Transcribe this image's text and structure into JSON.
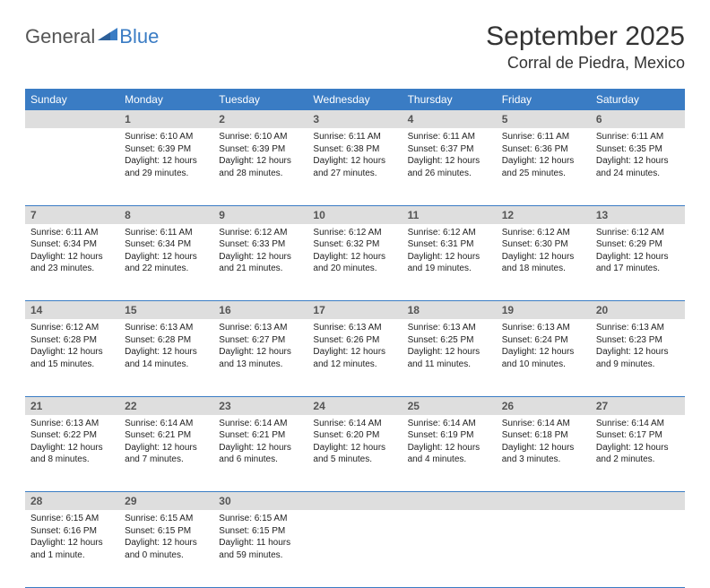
{
  "logo": {
    "general": "General",
    "blue": "Blue"
  },
  "title": "September 2025",
  "location": "Corral de Piedra, Mexico",
  "colors": {
    "header_bg": "#3a7cc4",
    "header_text": "#ffffff",
    "daynum_bg": "#dedede",
    "border": "#3a7cc4",
    "logo_blue": "#3a7cc4",
    "logo_gray": "#555555"
  },
  "day_headers": [
    "Sunday",
    "Monday",
    "Tuesday",
    "Wednesday",
    "Thursday",
    "Friday",
    "Saturday"
  ],
  "weeks": [
    {
      "nums": [
        "",
        "1",
        "2",
        "3",
        "4",
        "5",
        "6"
      ],
      "cells": [
        null,
        {
          "sunrise": "Sunrise: 6:10 AM",
          "sunset": "Sunset: 6:39 PM",
          "daylight": "Daylight: 12 hours and 29 minutes."
        },
        {
          "sunrise": "Sunrise: 6:10 AM",
          "sunset": "Sunset: 6:39 PM",
          "daylight": "Daylight: 12 hours and 28 minutes."
        },
        {
          "sunrise": "Sunrise: 6:11 AM",
          "sunset": "Sunset: 6:38 PM",
          "daylight": "Daylight: 12 hours and 27 minutes."
        },
        {
          "sunrise": "Sunrise: 6:11 AM",
          "sunset": "Sunset: 6:37 PM",
          "daylight": "Daylight: 12 hours and 26 minutes."
        },
        {
          "sunrise": "Sunrise: 6:11 AM",
          "sunset": "Sunset: 6:36 PM",
          "daylight": "Daylight: 12 hours and 25 minutes."
        },
        {
          "sunrise": "Sunrise: 6:11 AM",
          "sunset": "Sunset: 6:35 PM",
          "daylight": "Daylight: 12 hours and 24 minutes."
        }
      ]
    },
    {
      "nums": [
        "7",
        "8",
        "9",
        "10",
        "11",
        "12",
        "13"
      ],
      "cells": [
        {
          "sunrise": "Sunrise: 6:11 AM",
          "sunset": "Sunset: 6:34 PM",
          "daylight": "Daylight: 12 hours and 23 minutes."
        },
        {
          "sunrise": "Sunrise: 6:11 AM",
          "sunset": "Sunset: 6:34 PM",
          "daylight": "Daylight: 12 hours and 22 minutes."
        },
        {
          "sunrise": "Sunrise: 6:12 AM",
          "sunset": "Sunset: 6:33 PM",
          "daylight": "Daylight: 12 hours and 21 minutes."
        },
        {
          "sunrise": "Sunrise: 6:12 AM",
          "sunset": "Sunset: 6:32 PM",
          "daylight": "Daylight: 12 hours and 20 minutes."
        },
        {
          "sunrise": "Sunrise: 6:12 AM",
          "sunset": "Sunset: 6:31 PM",
          "daylight": "Daylight: 12 hours and 19 minutes."
        },
        {
          "sunrise": "Sunrise: 6:12 AM",
          "sunset": "Sunset: 6:30 PM",
          "daylight": "Daylight: 12 hours and 18 minutes."
        },
        {
          "sunrise": "Sunrise: 6:12 AM",
          "sunset": "Sunset: 6:29 PM",
          "daylight": "Daylight: 12 hours and 17 minutes."
        }
      ]
    },
    {
      "nums": [
        "14",
        "15",
        "16",
        "17",
        "18",
        "19",
        "20"
      ],
      "cells": [
        {
          "sunrise": "Sunrise: 6:12 AM",
          "sunset": "Sunset: 6:28 PM",
          "daylight": "Daylight: 12 hours and 15 minutes."
        },
        {
          "sunrise": "Sunrise: 6:13 AM",
          "sunset": "Sunset: 6:28 PM",
          "daylight": "Daylight: 12 hours and 14 minutes."
        },
        {
          "sunrise": "Sunrise: 6:13 AM",
          "sunset": "Sunset: 6:27 PM",
          "daylight": "Daylight: 12 hours and 13 minutes."
        },
        {
          "sunrise": "Sunrise: 6:13 AM",
          "sunset": "Sunset: 6:26 PM",
          "daylight": "Daylight: 12 hours and 12 minutes."
        },
        {
          "sunrise": "Sunrise: 6:13 AM",
          "sunset": "Sunset: 6:25 PM",
          "daylight": "Daylight: 12 hours and 11 minutes."
        },
        {
          "sunrise": "Sunrise: 6:13 AM",
          "sunset": "Sunset: 6:24 PM",
          "daylight": "Daylight: 12 hours and 10 minutes."
        },
        {
          "sunrise": "Sunrise: 6:13 AM",
          "sunset": "Sunset: 6:23 PM",
          "daylight": "Daylight: 12 hours and 9 minutes."
        }
      ]
    },
    {
      "nums": [
        "21",
        "22",
        "23",
        "24",
        "25",
        "26",
        "27"
      ],
      "cells": [
        {
          "sunrise": "Sunrise: 6:13 AM",
          "sunset": "Sunset: 6:22 PM",
          "daylight": "Daylight: 12 hours and 8 minutes."
        },
        {
          "sunrise": "Sunrise: 6:14 AM",
          "sunset": "Sunset: 6:21 PM",
          "daylight": "Daylight: 12 hours and 7 minutes."
        },
        {
          "sunrise": "Sunrise: 6:14 AM",
          "sunset": "Sunset: 6:21 PM",
          "daylight": "Daylight: 12 hours and 6 minutes."
        },
        {
          "sunrise": "Sunrise: 6:14 AM",
          "sunset": "Sunset: 6:20 PM",
          "daylight": "Daylight: 12 hours and 5 minutes."
        },
        {
          "sunrise": "Sunrise: 6:14 AM",
          "sunset": "Sunset: 6:19 PM",
          "daylight": "Daylight: 12 hours and 4 minutes."
        },
        {
          "sunrise": "Sunrise: 6:14 AM",
          "sunset": "Sunset: 6:18 PM",
          "daylight": "Daylight: 12 hours and 3 minutes."
        },
        {
          "sunrise": "Sunrise: 6:14 AM",
          "sunset": "Sunset: 6:17 PM",
          "daylight": "Daylight: 12 hours and 2 minutes."
        }
      ]
    },
    {
      "nums": [
        "28",
        "29",
        "30",
        "",
        "",
        "",
        ""
      ],
      "cells": [
        {
          "sunrise": "Sunrise: 6:15 AM",
          "sunset": "Sunset: 6:16 PM",
          "daylight": "Daylight: 12 hours and 1 minute."
        },
        {
          "sunrise": "Sunrise: 6:15 AM",
          "sunset": "Sunset: 6:15 PM",
          "daylight": "Daylight: 12 hours and 0 minutes."
        },
        {
          "sunrise": "Sunrise: 6:15 AM",
          "sunset": "Sunset: 6:15 PM",
          "daylight": "Daylight: 11 hours and 59 minutes."
        },
        null,
        null,
        null,
        null
      ]
    }
  ]
}
